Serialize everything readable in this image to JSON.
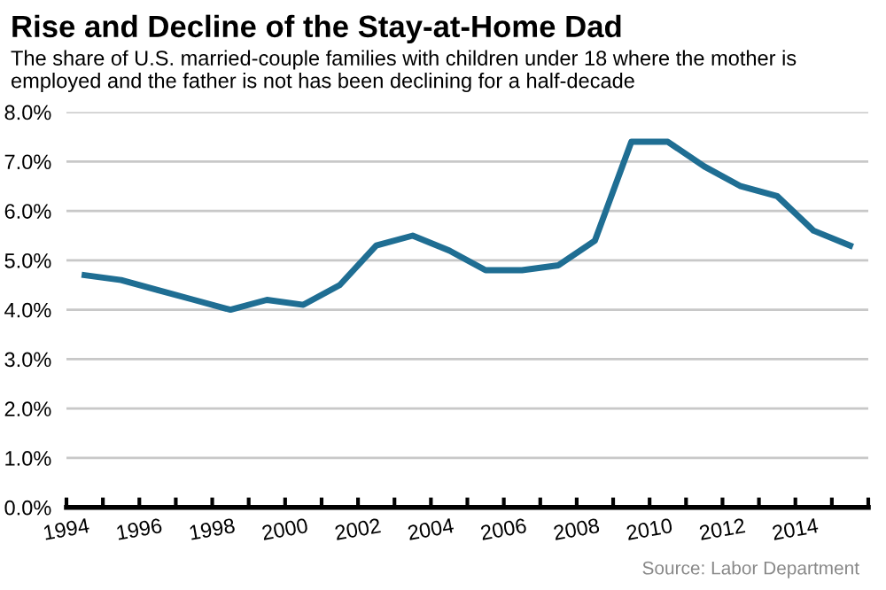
{
  "chart_data": {
    "type": "line",
    "title": "Rise and Decline of the Stay-at-Home Dad",
    "subtitle": "The share of U.S. married-couple families with children under 18 where the mother is employed and the father is not has been declining for a half-decade",
    "x": [
      1994.5,
      1995.5,
      1996.5,
      1997.5,
      1998.5,
      1999.5,
      2000.5,
      2001.5,
      2002.5,
      2003.5,
      2004.5,
      2005.5,
      2006.5,
      2007.5,
      2008.5,
      2009.5,
      2010.5,
      2011.5,
      2012.5,
      2013.5,
      2014.5,
      2015.5
    ],
    "series": [
      {
        "color": "#1f6e93",
        "values": [
          4.7,
          4.6,
          4.4,
          4.2,
          4.0,
          4.2,
          4.1,
          4.5,
          5.3,
          5.5,
          5.2,
          4.8,
          4.8,
          4.9,
          5.4,
          7.4,
          7.4,
          6.9,
          6.5,
          6.3,
          5.6,
          5.3
        ]
      }
    ],
    "xlim": [
      1994,
      2016
    ],
    "xticks": [
      1994,
      {
        "value": 1995,
        "label": null
      },
      1996,
      {
        "value": 1997,
        "label": null
      },
      1998,
      {
        "value": 1999,
        "label": null
      },
      2000,
      {
        "value": 2001,
        "label": null
      },
      2002,
      {
        "value": 2003,
        "label": null
      },
      2004,
      {
        "value": 2005,
        "label": null
      },
      2006,
      {
        "value": 2007,
        "label": null
      },
      2008,
      {
        "value": 2009,
        "label": null
      },
      2010,
      {
        "value": 2011,
        "label": null
      },
      2012,
      {
        "value": 2013,
        "label": null
      },
      2014,
      {
        "value": 2015,
        "label": null
      },
      {
        "value": 2016,
        "label": null
      }
    ],
    "ylim": [
      0,
      8
    ],
    "yticks": [
      {
        "value": 0,
        "label": "0.0%"
      },
      {
        "value": 1,
        "label": "1.0%"
      },
      {
        "value": 2,
        "label": "2.0%"
      },
      {
        "value": 3,
        "label": "3.0%"
      },
      {
        "value": 4,
        "label": "4.0%"
      },
      {
        "value": 5,
        "label": "5.0%"
      },
      {
        "value": 6,
        "label": "6.0%"
      },
      {
        "value": 7,
        "label": "7.0%"
      },
      {
        "value": 8,
        "label": "8.0%"
      }
    ],
    "grid": "y",
    "annotations": [
      "Source: Labor Department"
    ]
  }
}
